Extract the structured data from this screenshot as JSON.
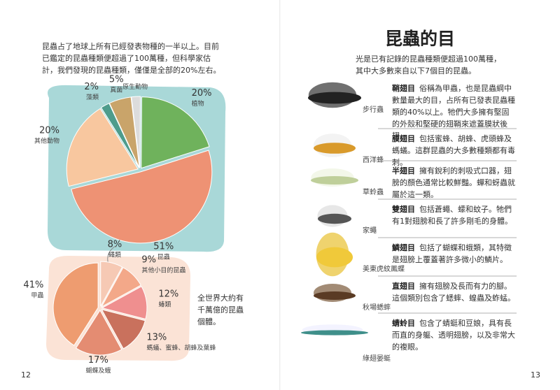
{
  "left_page": {
    "intro": "昆蟲占了地球上所有已經發表物種的一半以上。目前已鑑定的昆蟲種類便超過了100萬種，但科學家估計，我們發現的昆蟲種類，僅僅是全部的20%左右。",
    "note": "全世界大約有千萬億的昆蟲個體。",
    "page_number": "12"
  },
  "chart_data": [
    {
      "type": "pie",
      "categories": [
        "藻類",
        "真菌",
        "原生動物",
        "植物",
        "昆蟲",
        "其他動物"
      ],
      "values": [
        2,
        5,
        2,
        20,
        51,
        20
      ],
      "value_labels": [
        "2%",
        "5%",
        null,
        "20%",
        "51%",
        "20%"
      ],
      "colors": [
        "#4e9c8c",
        "#c9a46a",
        "#dcdcdc",
        "#6fb25c",
        "#ee9274",
        "#f8c79f"
      ]
    },
    {
      "type": "pie",
      "categories": [
        "蠅類",
        "其他小目的昆蟲",
        "蝽類",
        "螞蟻、蜜蜂、胡蜂及葉蜂",
        "蝴蝶及蛾",
        "甲蟲"
      ],
      "values": [
        8,
        9,
        12,
        13,
        17,
        41
      ],
      "value_labels": [
        "8%",
        "9%",
        "12%",
        "13%",
        "17%",
        "41%"
      ],
      "colors": [
        "#f6c9b4",
        "#f3a889",
        "#ef8f8f",
        "#c9715d",
        "#e48c72",
        "#ee9c70"
      ]
    }
  ],
  "right_page": {
    "title": "昆蟲的目",
    "intro": "光是已有記錄的昆蟲種類便超過100萬種，其中大多數來自以下7個目的昆蟲。",
    "page_number": "13",
    "orders": [
      {
        "insect": "步行蟲",
        "name": "鞘翅目",
        "description": "俗稱為甲蟲，也是昆蟲綱中數量最大的目，占所有已發表昆蟲種類的40%以上。牠們大多擁有堅固的外殼和堅硬的翅鞘來遮蓋膜狀後翅。"
      },
      {
        "insect": "西洋蜂",
        "name": "膜翅目",
        "description": "包括蜜蜂、胡蜂、虎頭蜂及螞蟻。這群昆蟲的大多數種類都有毒刺。"
      },
      {
        "insect": "草蛉蟲",
        "name": "半翅目",
        "description": "擁有銳利的刺吸式口器，翅膀的顏色通常比較鮮豔。蟬和蚜蟲就屬於這一類。"
      },
      {
        "insect": "家蠅",
        "name": "雙翅目",
        "description": "包括蒼蠅、蠓和蚊子。牠們有1對翅膀和長了許多剛毛的身體。"
      },
      {
        "insect": "美東虎紋鳳蝶",
        "name": "鱗翅目",
        "description": "包括了蝴蝶和蛾類，其特徵是翅膀上覆蓋著許多微小的鱗片。"
      },
      {
        "insect": "秋場蟋蟀",
        "name": "直翅目",
        "description": "擁有翅膀及長而有力的腳。這個類別包含了蟋蟀、蝗蟲及蚱蜢。"
      },
      {
        "insect": "綠翅晏蜓",
        "name": "蜻蛉目",
        "description": "包含了蜻蜓和豆娘，具有長而直的身軀、透明翅膀，以及非常大的複眼。"
      }
    ]
  }
}
